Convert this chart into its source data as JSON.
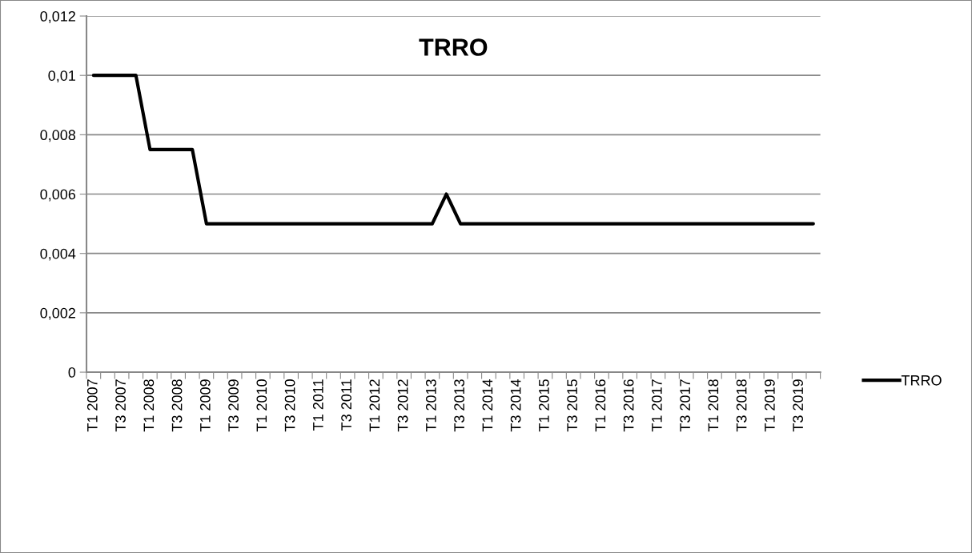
{
  "chart_data": {
    "type": "line",
    "title": "TRRO",
    "categories": [
      "T1 2007",
      null,
      "T3 2007",
      null,
      "T1 2008",
      null,
      "T3 2008",
      null,
      "T1 2009",
      null,
      "T3 2009",
      null,
      "T1 2010",
      null,
      "T3 2010",
      null,
      "T1 2011",
      null,
      "T3 2011",
      null,
      "T1 2012",
      null,
      "T3 2012",
      null,
      "T1 2013",
      null,
      "T3 2013",
      null,
      "T1 2014",
      null,
      "T3 2014",
      null,
      "T1 2015",
      null,
      "T3 2015",
      null,
      "T1 2016",
      null,
      "T3 2016",
      null,
      "T1 2017",
      null,
      "T3 2017",
      null,
      "T1 2018",
      null,
      "T3 2018",
      null,
      "T1 2019",
      null,
      "T3 2019",
      null
    ],
    "series": [
      {
        "name": "TRRO",
        "color": "#000000",
        "values": [
          0.01,
          0.01,
          0.01,
          0.01,
          0.0075,
          0.0075,
          0.0075,
          0.0075,
          0.005,
          0.005,
          0.005,
          0.005,
          0.005,
          0.005,
          0.005,
          0.005,
          0.005,
          0.005,
          0.005,
          0.005,
          0.005,
          0.005,
          0.005,
          0.005,
          0.005,
          0.006,
          0.005,
          0.005,
          0.005,
          0.005,
          0.005,
          0.005,
          0.005,
          0.005,
          0.005,
          0.005,
          0.005,
          0.005,
          0.005,
          0.005,
          0.005,
          0.005,
          0.005,
          0.005,
          0.005,
          0.005,
          0.005,
          0.005,
          0.005,
          0.005,
          0.005,
          0.005
        ]
      }
    ],
    "ylim": [
      0,
      0.012
    ],
    "yticks": [
      0,
      {
        "value": 0.002,
        "label": "0,002"
      },
      {
        "value": 0.004,
        "label": "0,004"
      },
      {
        "value": 0.006,
        "label": "0,006"
      },
      {
        "value": 0.008,
        "label": "0,008"
      },
      {
        "value": 0.01,
        "label": "0,01"
      },
      {
        "value": 0.012,
        "label": "0,012"
      }
    ],
    "grid": "y",
    "legend": "right",
    "marker": "none",
    "line_style": "solid"
  }
}
